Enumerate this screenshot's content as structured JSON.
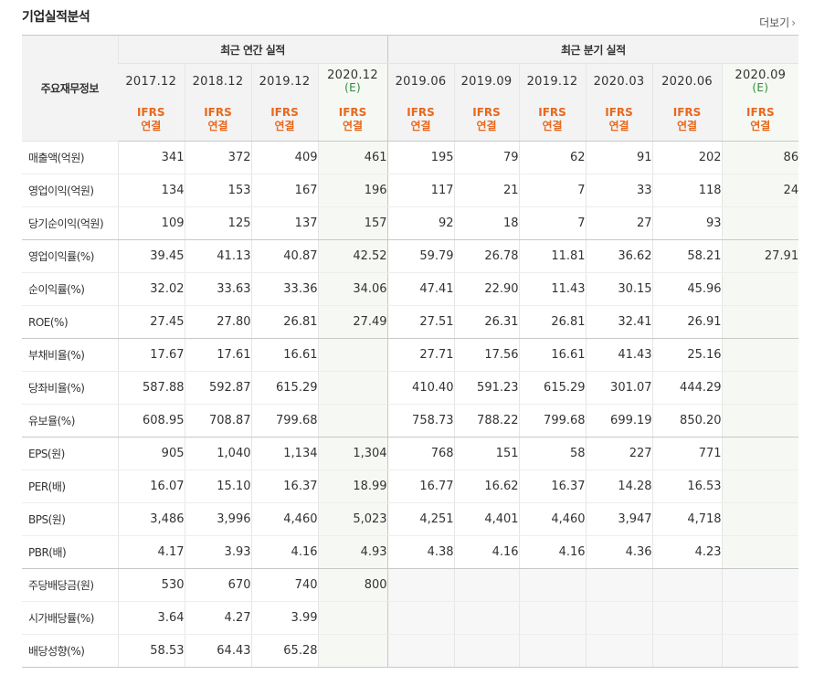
{
  "page": {
    "title": "기업실적분석",
    "more_label": "더보기",
    "more_icon": "chevron-right-icon"
  },
  "header": {
    "corner_label": "주요재무정보",
    "annual_group": "최근 연간 실적",
    "quarter_group": "최근 분기 실적",
    "columns": [
      {
        "period": "2017.12",
        "est": "",
        "std": "IFRS",
        "basis": "연결"
      },
      {
        "period": "2018.12",
        "est": "",
        "std": "IFRS",
        "basis": "연결"
      },
      {
        "period": "2019.12",
        "est": "",
        "std": "IFRS",
        "basis": "연결"
      },
      {
        "period": "2020.12",
        "est": "(E)",
        "std": "IFRS",
        "basis": "연결"
      },
      {
        "period": "2019.06",
        "est": "",
        "std": "IFRS",
        "basis": "연결"
      },
      {
        "period": "2019.09",
        "est": "",
        "std": "IFRS",
        "basis": "연결"
      },
      {
        "period": "2019.12",
        "est": "",
        "std": "IFRS",
        "basis": "연결"
      },
      {
        "period": "2020.03",
        "est": "",
        "std": "IFRS",
        "basis": "연결"
      },
      {
        "period": "2020.06",
        "est": "",
        "std": "IFRS",
        "basis": "연결"
      },
      {
        "period": "2020.09",
        "est": "(E)",
        "std": "IFRS",
        "basis": "연결"
      }
    ]
  },
  "rows": [
    {
      "label": "매출액(억원)",
      "values": [
        "341",
        "372",
        "409",
        "461",
        "195",
        "79",
        "62",
        "91",
        "202",
        "86"
      ]
    },
    {
      "label": "영업이익(억원)",
      "values": [
        "134",
        "153",
        "167",
        "196",
        "117",
        "21",
        "7",
        "33",
        "118",
        "24"
      ]
    },
    {
      "label": "당기순이익(억원)",
      "values": [
        "109",
        "125",
        "137",
        "157",
        "92",
        "18",
        "7",
        "27",
        "93",
        ""
      ]
    },
    {
      "label": "영업이익률(%)",
      "values": [
        "39.45",
        "41.13",
        "40.87",
        "42.52",
        "59.79",
        "26.78",
        "11.81",
        "36.62",
        "58.21",
        "27.91"
      ]
    },
    {
      "label": "순이익률(%)",
      "values": [
        "32.02",
        "33.63",
        "33.36",
        "34.06",
        "47.41",
        "22.90",
        "11.43",
        "30.15",
        "45.96",
        ""
      ]
    },
    {
      "label": "ROE(%)",
      "values": [
        "27.45",
        "27.80",
        "26.81",
        "27.49",
        "27.51",
        "26.31",
        "26.81",
        "32.41",
        "26.91",
        ""
      ]
    },
    {
      "label": "부채비율(%)",
      "values": [
        "17.67",
        "17.61",
        "16.61",
        "",
        "27.71",
        "17.56",
        "16.61",
        "41.43",
        "25.16",
        ""
      ]
    },
    {
      "label": "당좌비율(%)",
      "values": [
        "587.88",
        "592.87",
        "615.29",
        "",
        "410.40",
        "591.23",
        "615.29",
        "301.07",
        "444.29",
        ""
      ]
    },
    {
      "label": "유보율(%)",
      "values": [
        "608.95",
        "708.87",
        "799.68",
        "",
        "758.73",
        "788.22",
        "799.68",
        "699.19",
        "850.20",
        ""
      ]
    },
    {
      "label": "EPS(원)",
      "values": [
        "905",
        "1,040",
        "1,134",
        "1,304",
        "768",
        "151",
        "58",
        "227",
        "771",
        ""
      ]
    },
    {
      "label": "PER(배)",
      "values": [
        "16.07",
        "15.10",
        "16.37",
        "18.99",
        "16.77",
        "16.62",
        "16.37",
        "14.28",
        "16.53",
        ""
      ]
    },
    {
      "label": "BPS(원)",
      "values": [
        "3,486",
        "3,996",
        "4,460",
        "5,023",
        "4,251",
        "4,401",
        "4,460",
        "3,947",
        "4,718",
        ""
      ]
    },
    {
      "label": "PBR(배)",
      "values": [
        "4.17",
        "3.93",
        "4.16",
        "4.93",
        "4.38",
        "4.16",
        "4.16",
        "4.36",
        "4.23",
        ""
      ]
    },
    {
      "label": "주당배당금(원)",
      "values": [
        "530",
        "670",
        "740",
        "800",
        "",
        "",
        "",
        "",
        "",
        ""
      ]
    },
    {
      "label": "시가배당률(%)",
      "values": [
        "3.64",
        "4.27",
        "3.99",
        "",
        "",
        "",
        "",
        "",
        "",
        ""
      ]
    },
    {
      "label": "배당성향(%)",
      "values": [
        "58.53",
        "64.43",
        "65.28",
        "",
        "",
        "",
        "",
        "",
        "",
        ""
      ]
    }
  ],
  "colors": {
    "accent": "#e8681d",
    "estimate": "#2e8b3a",
    "estimate_bg": "#f6f9f3",
    "header_bg": "#f3f3f3"
  }
}
